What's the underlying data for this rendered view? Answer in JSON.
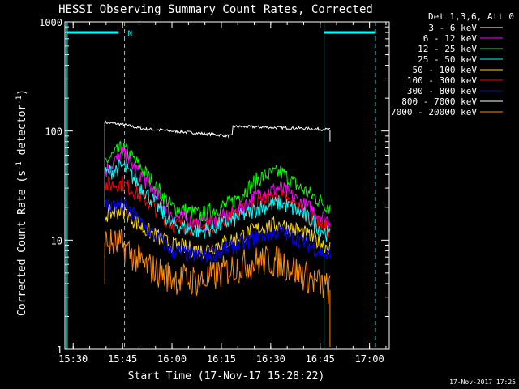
{
  "footer_date": "17-Nov-2017 17:25",
  "chart_data": {
    "type": "line",
    "title": "HESSI Observing Summary Count Rates, Corrected",
    "xlabel": "Start Time (17-Nov-17 15:28:22)",
    "ylabel_main": "Corrected Count Rate (s",
    "ylabel_sup1": "-1",
    "ylabel_mid": " detector",
    "ylabel_sup2": "-1",
    "ylabel_end": ")",
    "y_scale": "log",
    "ylim": [
      1,
      1000
    ],
    "xlim": [
      15.458,
      17.1
    ],
    "x_ticks": [
      {
        "t": 15.5,
        "label": "15:30"
      },
      {
        "t": 15.75,
        "label": "15:45"
      },
      {
        "t": 16.0,
        "label": "16:00"
      },
      {
        "t": 16.25,
        "label": "16:15"
      },
      {
        "t": 16.5,
        "label": "16:30"
      },
      {
        "t": 16.75,
        "label": "16:45"
      },
      {
        "t": 17.0,
        "label": "17:00"
      }
    ],
    "y_ticks": [
      {
        "v": 1,
        "label": "1"
      },
      {
        "v": 10,
        "label": "10"
      },
      {
        "v": 100,
        "label": "100"
      },
      {
        "v": 1000,
        "label": "1000"
      }
    ],
    "legend_title": "Det 1,3,6, Att 0",
    "legend_position": "right",
    "series": [
      {
        "name": "3 - 6 keV",
        "color": "#ffffff",
        "points": [
          [
            15.66,
            120
          ],
          [
            15.75,
            115
          ],
          [
            15.85,
            105
          ],
          [
            16.0,
            100
          ],
          [
            16.15,
            95
          ],
          [
            16.3,
            90
          ],
          [
            16.31,
            110
          ],
          [
            16.5,
            108
          ],
          [
            16.65,
            106
          ],
          [
            16.8,
            103
          ]
        ]
      },
      {
        "name": "6 - 12 keV",
        "color": "#ff00ff",
        "points": [
          [
            15.66,
            42
          ],
          [
            15.75,
            62
          ],
          [
            15.85,
            38
          ],
          [
            16.0,
            17
          ],
          [
            16.15,
            14
          ],
          [
            16.3,
            17
          ],
          [
            16.45,
            27
          ],
          [
            16.55,
            30
          ],
          [
            16.65,
            22
          ],
          [
            16.8,
            15
          ]
        ]
      },
      {
        "name": "12 - 25 keV",
        "color": "#00ff00",
        "points": [
          [
            15.66,
            52
          ],
          [
            15.75,
            70
          ],
          [
            15.85,
            45
          ],
          [
            16.0,
            20
          ],
          [
            16.15,
            17
          ],
          [
            16.3,
            22
          ],
          [
            16.45,
            38
          ],
          [
            16.55,
            42
          ],
          [
            16.65,
            30
          ],
          [
            16.8,
            20
          ]
        ]
      },
      {
        "name": "25 - 50 keV",
        "color": "#00ffff",
        "points": [
          [
            15.66,
            40
          ],
          [
            15.75,
            48
          ],
          [
            15.85,
            30
          ],
          [
            16.0,
            14
          ],
          [
            16.15,
            12
          ],
          [
            16.3,
            15
          ],
          [
            16.45,
            20
          ],
          [
            16.55,
            22
          ],
          [
            16.65,
            18
          ],
          [
            16.8,
            11
          ]
        ]
      },
      {
        "name": "50 - 100 keV",
        "color": "#ffd700",
        "points": [
          [
            15.66,
            17
          ],
          [
            15.75,
            19
          ],
          [
            15.85,
            13
          ],
          [
            16.0,
            9
          ],
          [
            16.15,
            8
          ],
          [
            16.3,
            10
          ],
          [
            16.45,
            13
          ],
          [
            16.55,
            14
          ],
          [
            16.65,
            12
          ],
          [
            16.8,
            8.5
          ]
        ]
      },
      {
        "name": "100 - 300 keV",
        "color": "#ff0000",
        "points": [
          [
            15.66,
            32
          ],
          [
            15.75,
            33
          ],
          [
            15.85,
            25
          ],
          [
            16.0,
            14
          ],
          [
            16.15,
            13
          ],
          [
            16.3,
            16
          ],
          [
            16.45,
            23
          ],
          [
            16.55,
            25
          ],
          [
            16.65,
            19
          ],
          [
            16.8,
            12
          ]
        ]
      },
      {
        "name": "300 - 800 keV",
        "color": "#0000ff",
        "points": [
          [
            15.66,
            21
          ],
          [
            15.75,
            21
          ],
          [
            15.85,
            14
          ],
          [
            16.0,
            8
          ],
          [
            16.15,
            7
          ],
          [
            16.3,
            8.5
          ],
          [
            16.45,
            11
          ],
          [
            16.55,
            12
          ],
          [
            16.65,
            10
          ],
          [
            16.8,
            7
          ]
        ]
      },
      {
        "name": "800 - 7000 keV",
        "color": "#ffffff",
        "points": []
      },
      {
        "name": "7000 - 20000 keV",
        "color": "#ff8c00",
        "points": [
          [
            15.66,
            9.5
          ],
          [
            15.75,
            9
          ],
          [
            15.85,
            6
          ],
          [
            16.0,
            4.5
          ],
          [
            16.15,
            4.2
          ],
          [
            16.3,
            5.5
          ],
          [
            16.45,
            6.5
          ],
          [
            16.55,
            6.3
          ],
          [
            16.65,
            5
          ],
          [
            16.8,
            3.5
          ]
        ]
      }
    ],
    "attenuator_markers": [
      {
        "t": 15.47,
        "style": "solid",
        "color": "#00ffff"
      },
      {
        "t": 15.76,
        "style": "dashed",
        "color": "#00ffff"
      },
      {
        "t": 16.77,
        "style": "solid",
        "color": "#00ffff"
      },
      {
        "t": 17.03,
        "style": "dashed",
        "color": "#00ffff"
      }
    ],
    "night_label": "N",
    "saa_bars": [
      {
        "t0": 15.47,
        "t1": 15.73,
        "v": 800
      },
      {
        "t0": 16.77,
        "t1": 17.03,
        "v": 800
      }
    ]
  }
}
